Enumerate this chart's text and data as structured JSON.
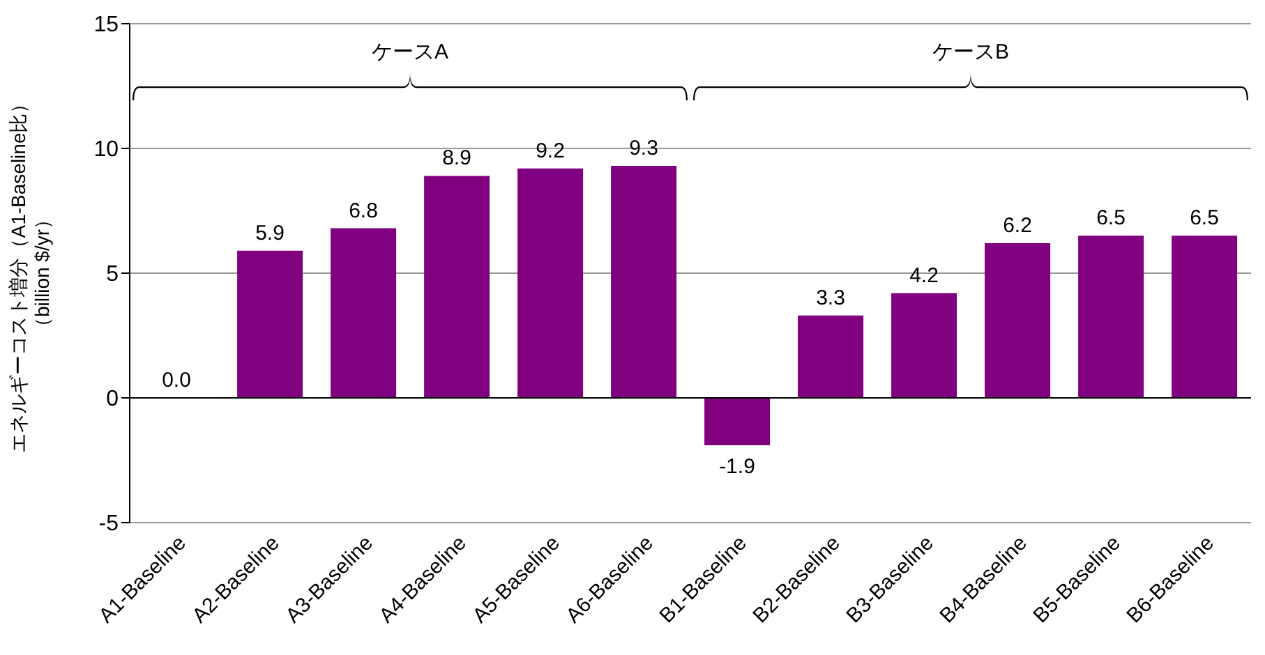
{
  "chart_data": {
    "type": "bar",
    "ylabel": "エネルギーコスト増分（A1-Baseline比）（billion $/yr）",
    "categories": [
      "A1-Baseline",
      "A2-Baseline",
      "A3-Baseline",
      "A4-Baseline",
      "A5-Baseline",
      "A6-Baseline",
      "B1-Baseline",
      "B2-Baseline",
      "B3-Baseline",
      "B4-Baseline",
      "B5-Baseline",
      "B6-Baseline"
    ],
    "values": [
      0.0,
      5.9,
      6.8,
      8.9,
      9.2,
      9.3,
      -1.9,
      3.3,
      4.2,
      6.2,
      6.5,
      6.5
    ],
    "value_labels": [
      "0.0",
      "5.9",
      "6.8",
      "8.9",
      "9.2",
      "9.3",
      "-1.9",
      "3.3",
      "4.2",
      "6.2",
      "6.5",
      "6.5"
    ],
    "color": "#800080",
    "ylim": [
      -5,
      15
    ],
    "yticks": [
      -5,
      0,
      5,
      10,
      15
    ],
    "grid": "y",
    "annotations": [
      "ケースA",
      "ケースB"
    ]
  }
}
